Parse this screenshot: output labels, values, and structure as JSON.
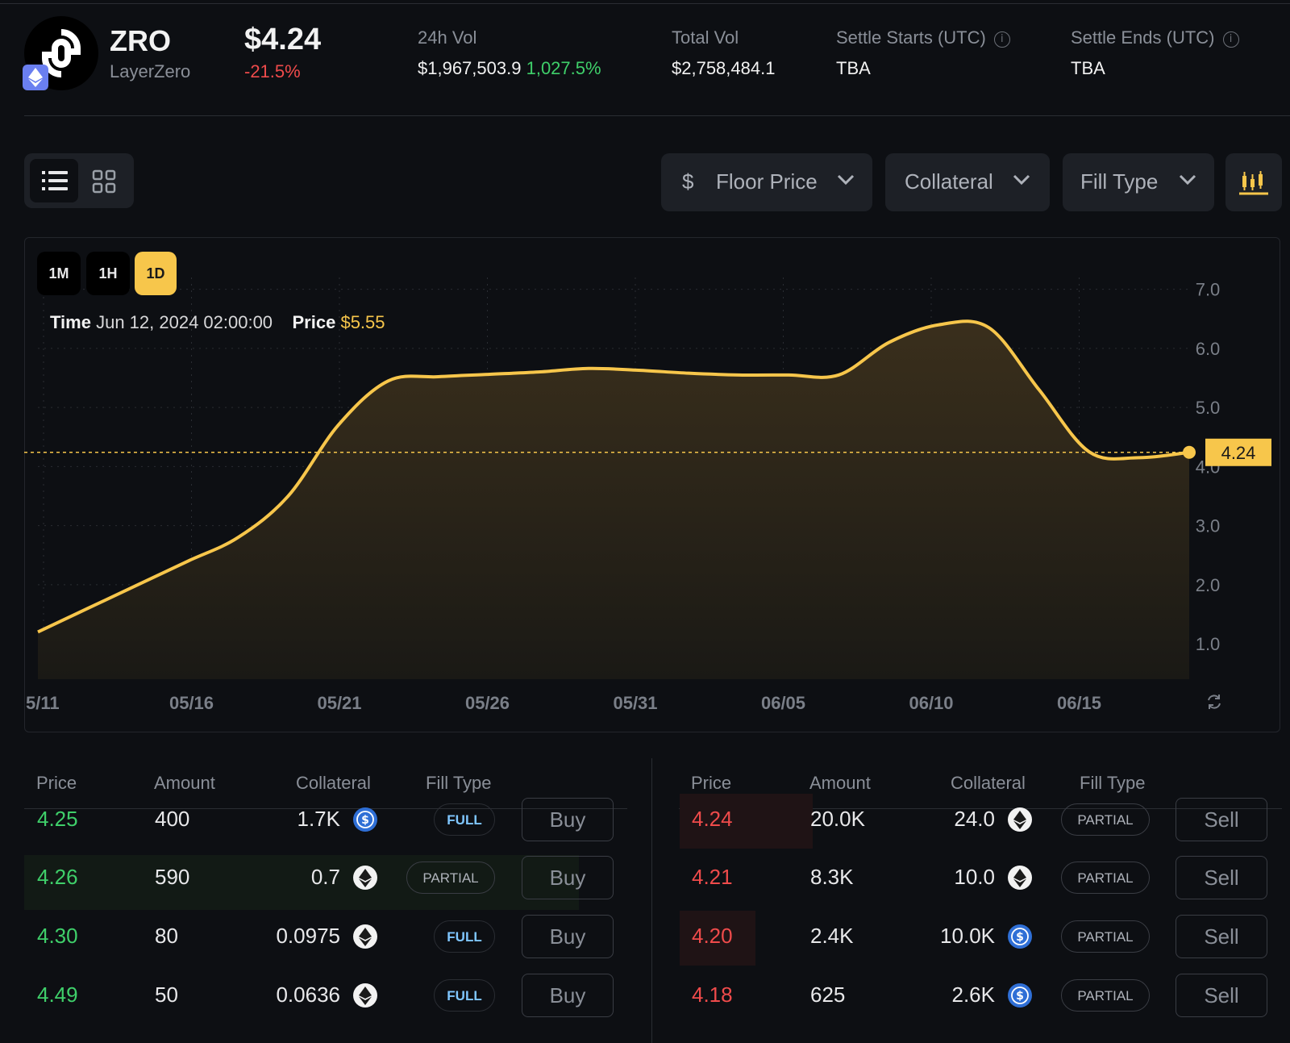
{
  "token": {
    "symbol": "ZRO",
    "name": "LayerZero",
    "price": "$4.24",
    "change": "-21.5%",
    "chain_icon": "ethereum-icon"
  },
  "stats": {
    "vol24h_label": "24h Vol",
    "vol24h_value": "$1,967,503.9",
    "vol24h_change": "1,027.5%",
    "total_vol_label": "Total Vol",
    "total_vol_value": "$2,758,484.1",
    "settle_starts_label": "Settle Starts (UTC)",
    "settle_starts_value": "TBA",
    "settle_ends_label": "Settle Ends (UTC)",
    "settle_ends_value": "TBA"
  },
  "toolbar": {
    "floor_price_currency": "$",
    "floor_price_label": "Floor Price",
    "collateral_label": "Collateral",
    "fill_type_label": "Fill Type"
  },
  "chart": {
    "timeframes": [
      "1M",
      "1H",
      "1D"
    ],
    "active_timeframe": "1D",
    "tooltip_time_label": "Time",
    "tooltip_time_value": "Jun 12, 2024 02:00:00",
    "tooltip_price_label": "Price",
    "tooltip_price_value": "$5.55",
    "current_label": "4.24"
  },
  "chart_data": {
    "type": "area",
    "x": [
      "05/11",
      "05/13",
      "05/15",
      "05/17",
      "05/19",
      "05/21",
      "05/23",
      "05/25",
      "05/27",
      "05/29",
      "05/31",
      "06/02",
      "06/04",
      "06/06",
      "06/08",
      "06/10",
      "06/12",
      "06/13",
      "06/14",
      "06/15",
      "06/16",
      "06/17",
      "06/18",
      "06/19"
    ],
    "values": [
      1.2,
      1.6,
      2.0,
      2.4,
      2.8,
      3.5,
      4.7,
      5.45,
      5.52,
      5.56,
      5.6,
      5.66,
      5.63,
      5.58,
      5.55,
      5.55,
      5.55,
      6.1,
      6.4,
      6.35,
      5.3,
      4.25,
      4.15,
      4.24
    ],
    "xticks": [
      "5/11",
      "05/16",
      "05/21",
      "05/26",
      "05/31",
      "06/05",
      "06/10",
      "06/15"
    ],
    "yticks": [
      "1.0",
      "2.0",
      "3.0",
      "4.0",
      "5.0",
      "6.0",
      "7.0"
    ],
    "ylim": [
      0.4,
      7.2
    ],
    "current_value": 4.24,
    "grid": true,
    "colors": {
      "line": "#f7c64b",
      "fill": "#3a2f1c",
      "label_bg": "#f7c64b"
    }
  },
  "orderbook": {
    "headers": {
      "price": "Price",
      "amount": "Amount",
      "collateral": "Collateral",
      "fill_type": "Fill Type"
    },
    "buy": [
      {
        "price": "4.25",
        "amount": "400",
        "collateral": "1.7K",
        "coin": "usdc-icon",
        "fill": "FULL",
        "action": "Buy"
      },
      {
        "price": "4.26",
        "amount": "590",
        "collateral": "0.7",
        "coin": "eth-icon",
        "fill": "PARTIAL",
        "action": "Buy"
      },
      {
        "price": "4.30",
        "amount": "80",
        "collateral": "0.0975",
        "coin": "eth-icon",
        "fill": "FULL",
        "action": "Buy"
      },
      {
        "price": "4.49",
        "amount": "50",
        "collateral": "0.0636",
        "coin": "eth-icon",
        "fill": "FULL",
        "action": "Buy"
      }
    ],
    "sell": [
      {
        "price": "4.24",
        "amount": "20.0K",
        "collateral": "24.0",
        "coin": "eth-icon",
        "fill": "PARTIAL",
        "action": "Sell"
      },
      {
        "price": "4.21",
        "amount": "8.3K",
        "collateral": "10.0",
        "coin": "eth-icon",
        "fill": "PARTIAL",
        "action": "Sell"
      },
      {
        "price": "4.20",
        "amount": "2.4K",
        "collateral": "10.0K",
        "coin": "usdc-icon",
        "fill": "PARTIAL",
        "action": "Sell"
      },
      {
        "price": "4.18",
        "amount": "625",
        "collateral": "2.6K",
        "coin": "usdc-icon",
        "fill": "PARTIAL",
        "action": "Sell"
      }
    ]
  }
}
